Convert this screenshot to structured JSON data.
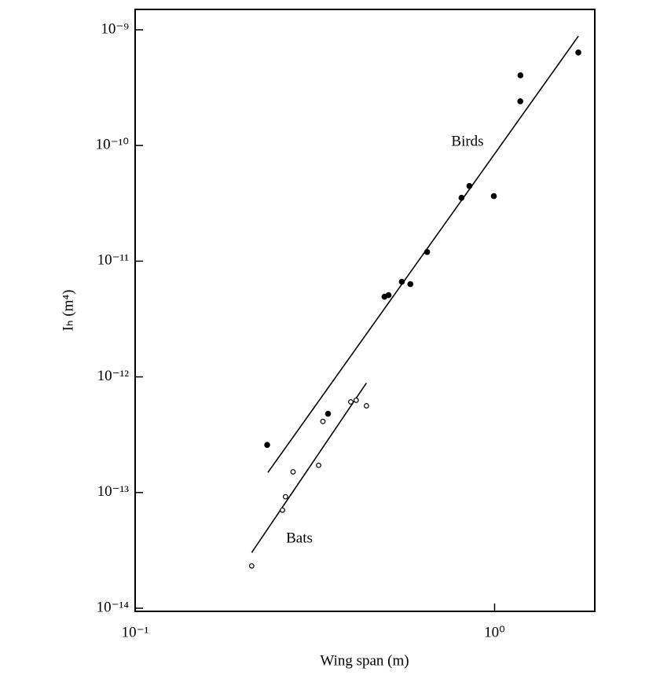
{
  "chart_data": {
    "type": "scatter",
    "xlabel": "Wing span (m)",
    "ylabel": "Iₕ (m⁴)",
    "log_x": true,
    "log_y": true,
    "xlim": [
      0.1,
      1.9
    ],
    "ylim": [
      9.4e-15,
      1.5e-09
    ],
    "xticks": [
      {
        "value": 0.1,
        "label": "10⁻¹"
      },
      {
        "value": 1,
        "label": "10⁰"
      }
    ],
    "yticks": [
      {
        "value": 1e-14,
        "label": "10⁻¹⁴"
      },
      {
        "value": 1e-13,
        "label": "10⁻¹³"
      },
      {
        "value": 1e-12,
        "label": "10⁻¹²"
      },
      {
        "value": 1e-11,
        "label": "10⁻¹¹"
      },
      {
        "value": 1e-10,
        "label": "10⁻¹⁰"
      },
      {
        "value": 1e-09,
        "label": "10⁻⁹"
      }
    ],
    "series": [
      {
        "name": "Birds",
        "marker": "filled",
        "color": "#000000",
        "x": [
          0.233,
          0.344,
          0.494,
          0.507,
          0.552,
          0.583,
          0.649,
          0.809,
          0.851,
          0.995,
          1.18,
          1.179,
          1.71
        ],
        "values": [
          2.58e-13,
          4.8e-13,
          4.93e-12,
          5.09e-12,
          6.64e-12,
          6.34e-12,
          1.2e-11,
          3.53e-11,
          4.47e-11,
          3.65e-11,
          4.04e-10,
          2.41e-10,
          6.36e-10
        ],
        "fit": {
          "x": [
            0.234,
            1.71
          ],
          "values": [
            1.49e-13,
            8.8e-10
          ]
        }
      },
      {
        "name": "Bats",
        "marker": "open",
        "color": "#000000",
        "x": [
          0.211,
          0.257,
          0.262,
          0.275,
          0.324,
          0.333,
          0.398,
          0.412,
          0.44
        ],
        "values": [
          2.32e-14,
          7.05e-14,
          9.2e-14,
          1.51e-13,
          1.72e-13,
          4.12e-13,
          6.08e-13,
          6.28e-13,
          5.62e-13
        ],
        "fit": {
          "x": [
            0.211,
            0.44
          ],
          "values": [
            3.03e-14,
            8.85e-13
          ]
        }
      }
    ]
  }
}
